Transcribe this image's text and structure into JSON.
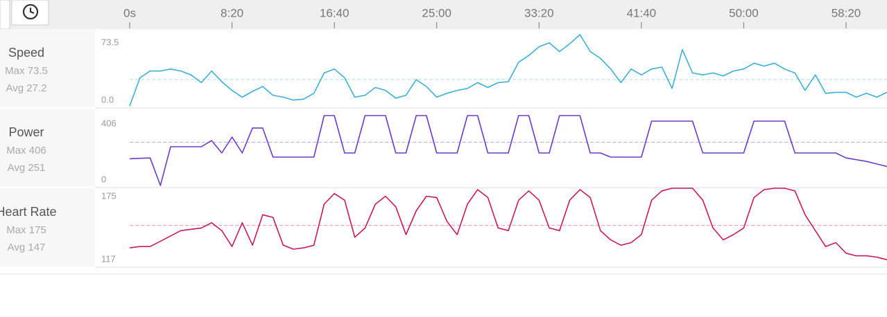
{
  "timeline": {
    "x": [
      0,
      50,
      100,
      150,
      200,
      250,
      300,
      350,
      400,
      450,
      500,
      550,
      600,
      650,
      700,
      750,
      800,
      850,
      900,
      950,
      1000,
      1050,
      1100,
      1150,
      1200,
      1250,
      1300,
      1350,
      1400,
      1450,
      1500,
      1550,
      1600,
      1650,
      1700,
      1750,
      1800,
      1850,
      1900,
      1950,
      2000,
      2050,
      2100,
      2150,
      2200,
      2250,
      2300,
      2350,
      2400,
      2450,
      2500,
      2550,
      2600,
      2650,
      2700,
      2750,
      2800,
      2850,
      2900,
      2950,
      3000,
      3050,
      3100,
      3150,
      3200,
      3250,
      3300,
      3350,
      3400,
      3450,
      3500,
      3550,
      3600,
      3650,
      3700
    ],
    "xlim": [
      0,
      3700
    ],
    "xticks": [
      {
        "value": 0,
        "label": "0s"
      },
      {
        "value": 500,
        "label": "8:20"
      },
      {
        "value": 1000,
        "label": "16:40"
      },
      {
        "value": 1500,
        "label": "25:00"
      },
      {
        "value": 2000,
        "label": "33:20"
      },
      {
        "value": 2500,
        "label": "41:40"
      },
      {
        "value": 3000,
        "label": "50:00"
      },
      {
        "value": 3500,
        "label": "58:20"
      }
    ]
  },
  "chart_data": [
    {
      "type": "line",
      "title": "Speed",
      "color": "#3ab0d6",
      "max": {
        "value": 73.5,
        "label": "Max 73.5"
      },
      "avg": {
        "value": 27.2,
        "label": "Avg 27.2"
      },
      "ylim": [
        0,
        73.5
      ],
      "yticks": [
        {
          "value": 0,
          "label": "0.0"
        },
        73.5
      ],
      "values": [
        0,
        29,
        36,
        36,
        38,
        36,
        32,
        24,
        36,
        25,
        16,
        9,
        15,
        20,
        11,
        9,
        6,
        7,
        13,
        34,
        38,
        29,
        9,
        11,
        19,
        16,
        8,
        11,
        27,
        20,
        9,
        13,
        16,
        18,
        24,
        19,
        24,
        25,
        45,
        52,
        61,
        65,
        56,
        64,
        73.5,
        56,
        49,
        38,
        24,
        38,
        32,
        38,
        40,
        18,
        58,
        34,
        32,
        34,
        31,
        36,
        38,
        44,
        41,
        44,
        38,
        34,
        16,
        32,
        13,
        14,
        14,
        9,
        13,
        9,
        14
      ]
    },
    {
      "type": "line",
      "title": "Power",
      "color": "#6a3bc9",
      "max": {
        "value": 406,
        "label": "Max 406"
      },
      "avg": {
        "value": 251,
        "label": "Avg 251"
      },
      "ylim": [
        0,
        406
      ],
      "yticks": [
        0,
        406
      ],
      "values": [
        155,
        158,
        160,
        0,
        225,
        225,
        225,
        225,
        261,
        189,
        281,
        189,
        334,
        334,
        165,
        165,
        165,
        165,
        165,
        406,
        406,
        189,
        189,
        406,
        406,
        406,
        189,
        189,
        406,
        406,
        189,
        189,
        189,
        406,
        406,
        189,
        189,
        189,
        406,
        406,
        189,
        189,
        406,
        406,
        406,
        189,
        189,
        165,
        165,
        165,
        165,
        374,
        374,
        374,
        374,
        374,
        189,
        189,
        189,
        189,
        189,
        374,
        374,
        374,
        374,
        189,
        189,
        189,
        189,
        189,
        160,
        150,
        140,
        125,
        110
      ]
    },
    {
      "type": "line",
      "title": "Heart Rate",
      "color": "#c8185a",
      "max": {
        "value": 175,
        "label": "Max 175"
      },
      "avg": {
        "value": 147,
        "label": "Avg 147"
      },
      "ylim": [
        117,
        175
      ],
      "yticks": [
        117,
        175
      ],
      "values": [
        130,
        131,
        131,
        135,
        139,
        143,
        144,
        145,
        149,
        143,
        131,
        149,
        132,
        155,
        153,
        132,
        129,
        130,
        132,
        163,
        171,
        166,
        138,
        145,
        163,
        169,
        161,
        140,
        158,
        169,
        168,
        150,
        140,
        163,
        174,
        168,
        145,
        143,
        166,
        173,
        166,
        145,
        143,
        166,
        174,
        168,
        143,
        136,
        132,
        134,
        140,
        166,
        173,
        175,
        175,
        175,
        166,
        145,
        136,
        140,
        145,
        168,
        174,
        175,
        175,
        173,
        155,
        143,
        131,
        134,
        126,
        124,
        124,
        123,
        121
      ]
    }
  ]
}
